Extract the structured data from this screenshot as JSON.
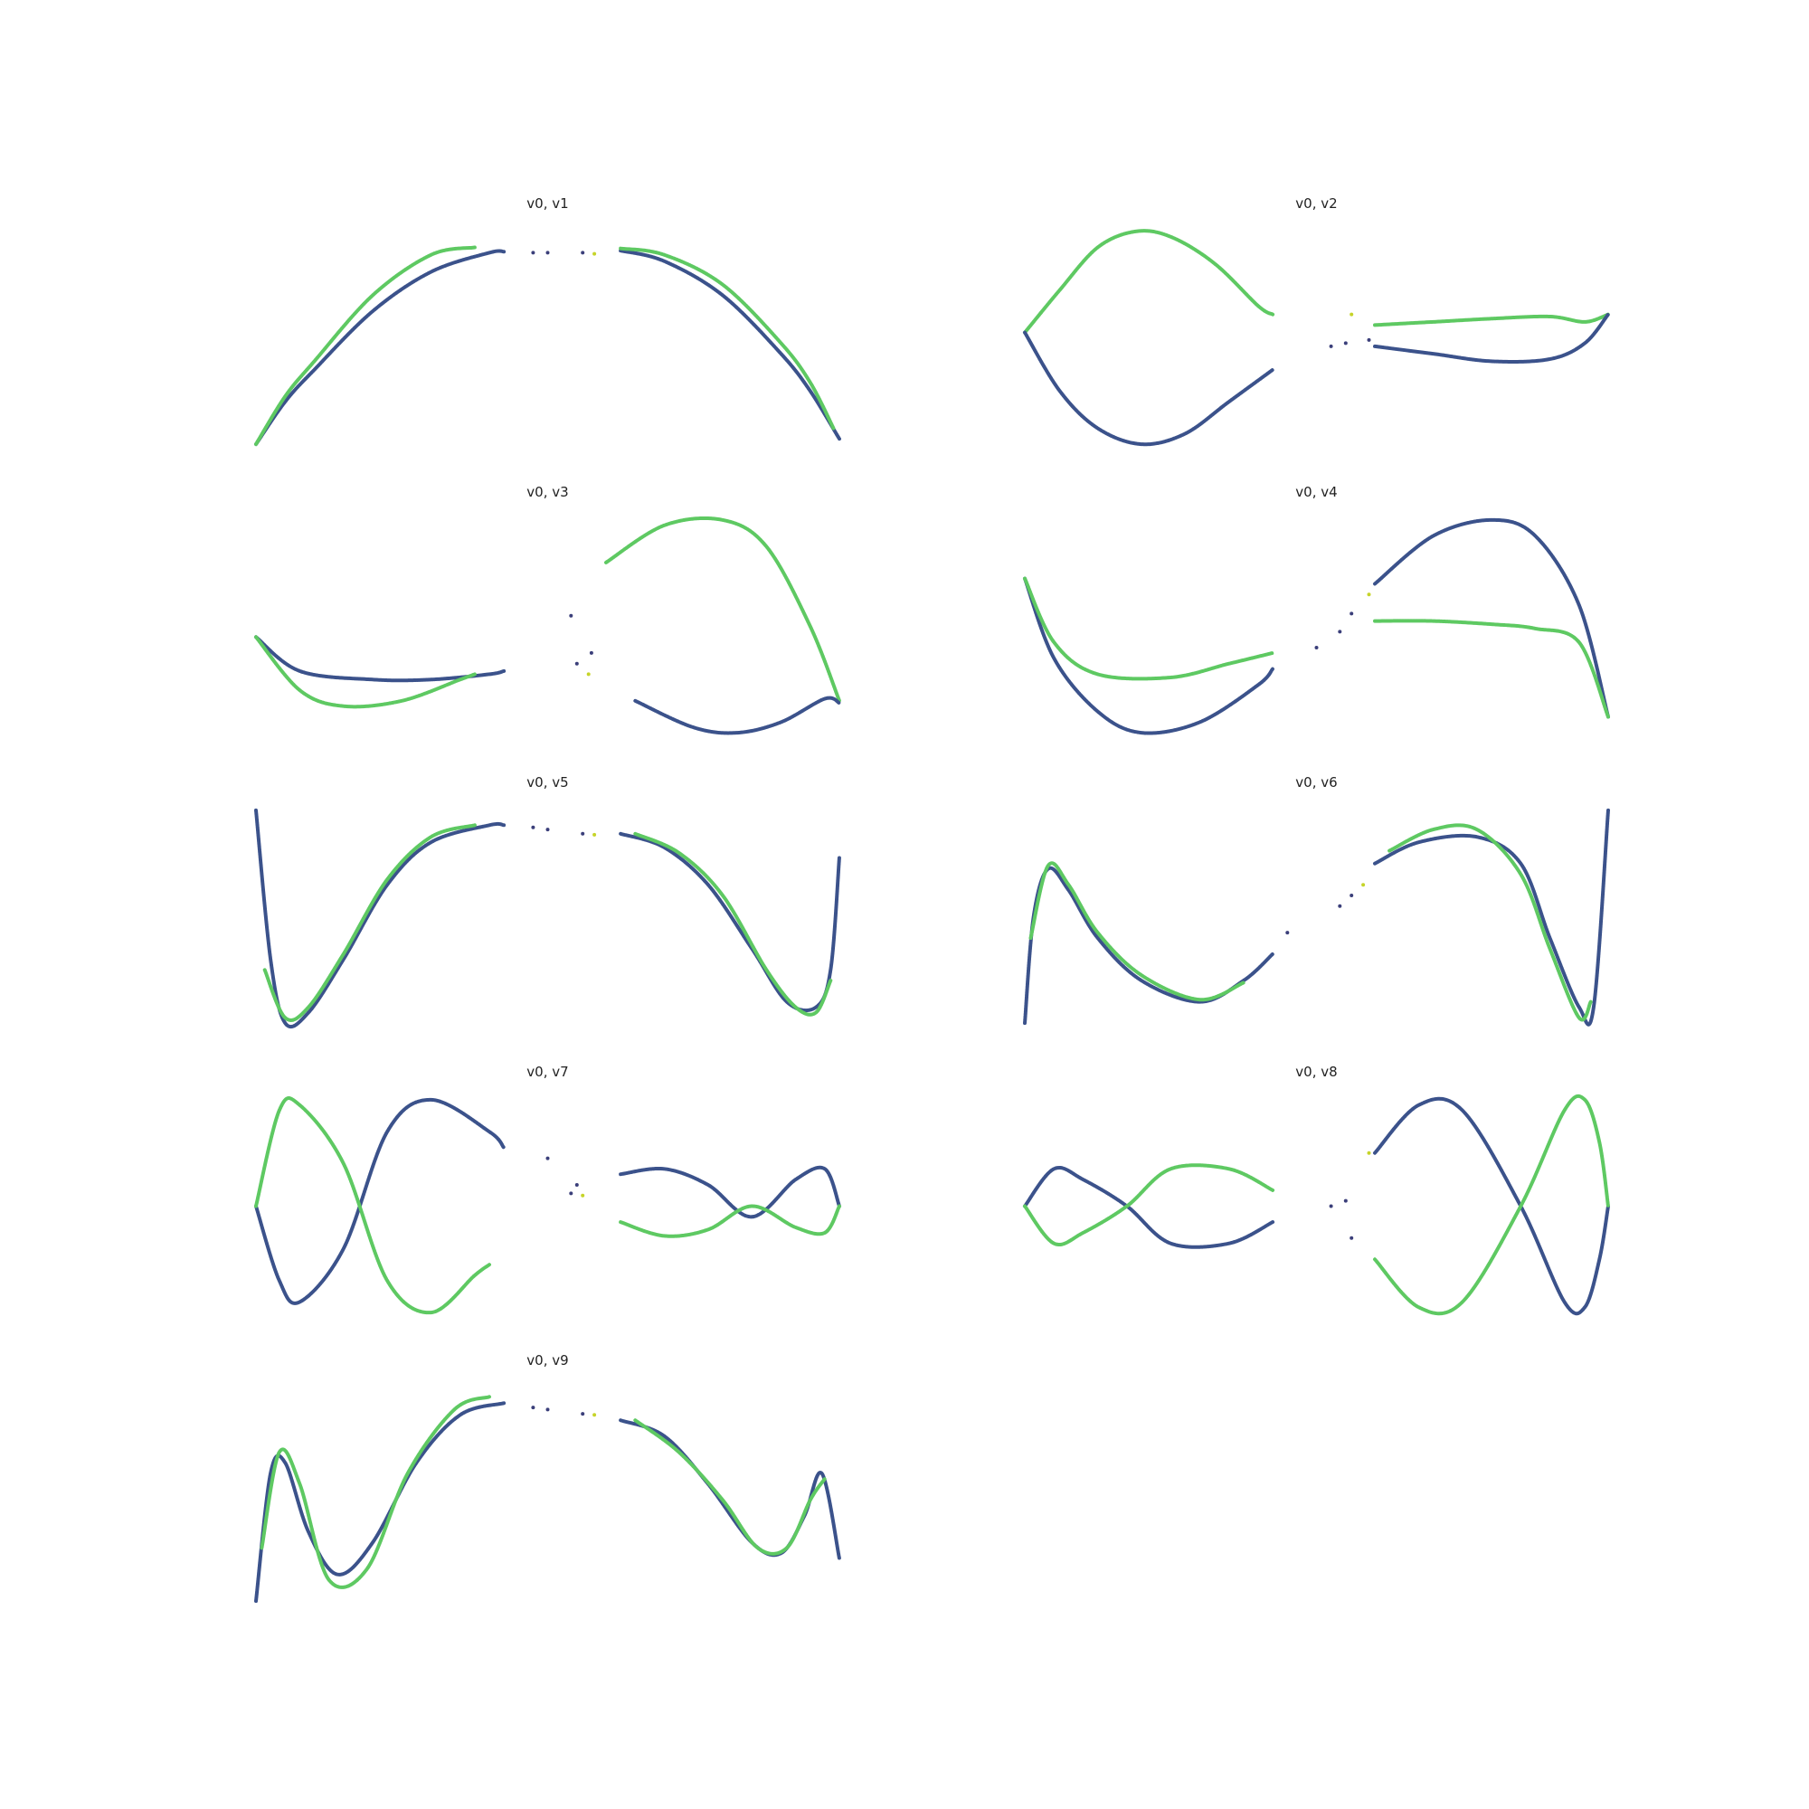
{
  "figure": {
    "background": "#ffffff",
    "colormap": [
      "#440154",
      "#3b528b",
      "#21918c",
      "#5ec962",
      "#fde725"
    ]
  },
  "chart_data": [
    {
      "type": "scatter",
      "title": "v0, v1",
      "x_var": "v0",
      "y_var": "v1",
      "xlim": [
        -1,
        1
      ],
      "ylim": [
        -1.05,
        1.05
      ],
      "axis": "off",
      "curves": [
        {
          "name": "lower",
          "color": "#3b528b",
          "x": [
            -1.0,
            -0.9,
            -0.8,
            -0.6,
            -0.4,
            -0.2,
            -0.15
          ],
          "y": [
            -1.0,
            -0.6,
            -0.3,
            0.25,
            0.62,
            0.8,
            0.81
          ]
        },
        {
          "name": "upper",
          "color": "#5ec962",
          "x": [
            -1.0,
            -0.9,
            -0.8,
            -0.6,
            -0.4,
            -0.25
          ],
          "y": [
            -1.0,
            -0.55,
            -0.22,
            0.4,
            0.78,
            0.85
          ]
        },
        {
          "name": "right-lower",
          "color": "#3b528b",
          "x": [
            0.25,
            0.4,
            0.6,
            0.8,
            0.9,
            1.0
          ],
          "y": [
            0.82,
            0.72,
            0.4,
            -0.15,
            -0.5,
            -0.95
          ]
        },
        {
          "name": "right-upper",
          "color": "#5ec962",
          "x": [
            0.25,
            0.4,
            0.6,
            0.8,
            0.9,
            0.98
          ],
          "y": [
            0.84,
            0.78,
            0.5,
            -0.05,
            -0.42,
            -0.85
          ]
        }
      ],
      "points": [
        {
          "x": -0.05,
          "y": 0.8
        },
        {
          "x": 0.0,
          "y": 0.8
        },
        {
          "x": 0.12,
          "y": 0.8
        },
        {
          "x": 0.16,
          "y": 0.79
        }
      ]
    },
    {
      "type": "scatter",
      "title": "v0, v2",
      "x_var": "v0",
      "y_var": "v2",
      "xlim": [
        -1,
        1
      ],
      "ylim": [
        -1.05,
        1.05
      ],
      "axis": "off",
      "curves": [
        {
          "name": "left-upper",
          "color": "#5ec962",
          "x": [
            -1.0,
            -0.88,
            -0.75,
            -0.62,
            -0.5,
            -0.35,
            -0.2,
            -0.15
          ],
          "y": [
            0.05,
            0.45,
            0.85,
            1.0,
            0.95,
            0.7,
            0.3,
            0.22
          ]
        },
        {
          "name": "left-lower",
          "color": "#3b528b",
          "x": [
            -1.0,
            -0.88,
            -0.75,
            -0.6,
            -0.45,
            -0.3,
            -0.15
          ],
          "y": [
            0.05,
            -0.5,
            -0.85,
            -1.0,
            -0.9,
            -0.6,
            -0.3
          ]
        },
        {
          "name": "right-upper",
          "color": "#5ec962",
          "x": [
            0.2,
            0.4,
            0.6,
            0.8,
            0.92,
            1.0
          ],
          "y": [
            0.12,
            0.15,
            0.18,
            0.2,
            0.15,
            0.22
          ]
        },
        {
          "name": "right-lower",
          "color": "#3b528b",
          "x": [
            0.2,
            0.4,
            0.6,
            0.8,
            0.92,
            1.0
          ],
          "y": [
            -0.08,
            -0.15,
            -0.22,
            -0.2,
            -0.05,
            0.22
          ]
        }
      ],
      "points": [
        {
          "x": 0.1,
          "y": -0.05
        },
        {
          "x": 0.18,
          "y": -0.02
        },
        {
          "x": 0.05,
          "y": -0.08
        },
        {
          "x": 0.12,
          "y": 0.22
        }
      ]
    },
    {
      "type": "scatter",
      "title": "v0, v3",
      "x_var": "v0",
      "y_var": "v3",
      "xlim": [
        -1,
        1
      ],
      "ylim": [
        -1.05,
        1.05
      ],
      "axis": "off",
      "curves": [
        {
          "name": "left-lower",
          "color": "#3b528b",
          "x": [
            -1.0,
            -0.85,
            -0.6,
            -0.4,
            -0.2,
            -0.15
          ],
          "y": [
            -0.1,
            -0.42,
            -0.5,
            -0.5,
            -0.45,
            -0.42
          ]
        },
        {
          "name": "left-upper",
          "color": "#5ec962",
          "x": [
            -1.0,
            -0.85,
            -0.7,
            -0.5,
            -0.3,
            -0.25
          ],
          "y": [
            -0.1,
            -0.6,
            -0.75,
            -0.7,
            -0.5,
            -0.45
          ]
        },
        {
          "name": "right-upper",
          "color": "#5ec962",
          "x": [
            0.2,
            0.4,
            0.6,
            0.75,
            0.9,
            1.0
          ],
          "y": [
            0.6,
            0.95,
            1.0,
            0.75,
            0.0,
            -0.7
          ]
        },
        {
          "name": "right-lower",
          "color": "#3b528b",
          "x": [
            0.3,
            0.5,
            0.65,
            0.8,
            0.95,
            1.0
          ],
          "y": [
            -0.7,
            -0.95,
            -1.0,
            -0.9,
            -0.68,
            -0.72
          ]
        }
      ],
      "points": [
        {
          "x": 0.1,
          "y": -0.35
        },
        {
          "x": 0.15,
          "y": -0.25
        },
        {
          "x": 0.08,
          "y": 0.1
        },
        {
          "x": 0.14,
          "y": -0.45
        }
      ]
    },
    {
      "type": "scatter",
      "title": "v0, v4",
      "x_var": "v0",
      "y_var": "v4",
      "xlim": [
        -1,
        1
      ],
      "ylim": [
        -1.05,
        1.05
      ],
      "axis": "off",
      "curves": [
        {
          "name": "left-lower",
          "color": "#3b528b",
          "x": [
            -1.0,
            -0.9,
            -0.75,
            -0.6,
            -0.4,
            -0.2,
            -0.15
          ],
          "y": [
            0.45,
            -0.3,
            -0.8,
            -1.0,
            -0.9,
            -0.55,
            -0.4
          ]
        },
        {
          "name": "left-upper",
          "color": "#5ec962",
          "x": [
            -1.0,
            -0.9,
            -0.75,
            -0.5,
            -0.3,
            -0.15
          ],
          "y": [
            0.45,
            -0.15,
            -0.45,
            -0.48,
            -0.35,
            -0.25
          ]
        },
        {
          "name": "right-upper",
          "color": "#3b528b",
          "x": [
            0.2,
            0.4,
            0.6,
            0.75,
            0.9,
            1.0
          ],
          "y": [
            0.4,
            0.85,
            1.0,
            0.85,
            0.2,
            -0.85
          ]
        },
        {
          "name": "right-lower",
          "color": "#5ec962",
          "x": [
            0.2,
            0.4,
            0.6,
            0.75,
            0.9,
            1.0
          ],
          "y": [
            0.05,
            0.05,
            0.02,
            -0.02,
            -0.15,
            -0.85
          ]
        }
      ],
      "points": [
        {
          "x": 0.08,
          "y": -0.05
        },
        {
          "x": 0.12,
          "y": 0.12
        },
        {
          "x": 0.0,
          "y": -0.2
        },
        {
          "x": 0.18,
          "y": 0.3
        }
      ]
    },
    {
      "type": "scatter",
      "title": "v0, v5",
      "x_var": "v0",
      "y_var": "v5",
      "xlim": [
        -1,
        1
      ],
      "ylim": [
        -1.05,
        1.05
      ],
      "axis": "off",
      "curves": [
        {
          "name": "left",
          "color": "#3b528b",
          "x": [
            -1.0,
            -0.95,
            -0.9,
            -0.82,
            -0.7,
            -0.55,
            -0.4,
            -0.2,
            -0.15
          ],
          "y": [
            1.0,
            -0.4,
            -1.0,
            -0.9,
            -0.4,
            0.3,
            0.7,
            0.86,
            0.86
          ]
        },
        {
          "name": "left-alt",
          "color": "#5ec962",
          "x": [
            -0.97,
            -0.9,
            -0.82,
            -0.7,
            -0.55,
            -0.4,
            -0.25
          ],
          "y": [
            -0.5,
            -0.95,
            -0.85,
            -0.35,
            0.35,
            0.75,
            0.86
          ]
        },
        {
          "name": "right",
          "color": "#3b528b",
          "x": [
            0.25,
            0.4,
            0.55,
            0.7,
            0.82,
            0.92,
            0.97,
            1.0
          ],
          "y": [
            0.78,
            0.65,
            0.3,
            -0.3,
            -0.8,
            -0.85,
            -0.5,
            0.56
          ]
        },
        {
          "name": "right-alt",
          "color": "#5ec962",
          "x": [
            0.3,
            0.45,
            0.6,
            0.75,
            0.85,
            0.92,
            0.97
          ],
          "y": [
            0.78,
            0.6,
            0.2,
            -0.5,
            -0.85,
            -0.9,
            -0.6
          ]
        }
      ],
      "points": [
        {
          "x": -0.05,
          "y": 0.84
        },
        {
          "x": 0.0,
          "y": 0.82
        },
        {
          "x": 0.12,
          "y": 0.78
        },
        {
          "x": 0.16,
          "y": 0.77
        }
      ]
    },
    {
      "type": "scatter",
      "title": "v0, v6",
      "x_var": "v0",
      "y_var": "v6",
      "xlim": [
        -1,
        1
      ],
      "ylim": [
        -1.05,
        1.05
      ],
      "axis": "off",
      "curves": [
        {
          "name": "left",
          "color": "#3b528b",
          "x": [
            -1.0,
            -0.97,
            -0.92,
            -0.85,
            -0.75,
            -0.6,
            -0.4,
            -0.25,
            -0.15
          ],
          "y": [
            -1.0,
            0.0,
            0.45,
            0.25,
            -0.2,
            -0.6,
            -0.8,
            -0.6,
            -0.35
          ]
        },
        {
          "name": "left-alt",
          "color": "#5ec962",
          "x": [
            -0.98,
            -0.92,
            -0.85,
            -0.75,
            -0.6,
            -0.4,
            -0.25
          ],
          "y": [
            -0.2,
            0.48,
            0.3,
            -0.15,
            -0.55,
            -0.78,
            -0.62
          ]
        },
        {
          "name": "right",
          "color": "#3b528b",
          "x": [
            0.2,
            0.35,
            0.55,
            0.7,
            0.8,
            0.9,
            0.95,
            1.0
          ],
          "y": [
            0.5,
            0.7,
            0.75,
            0.5,
            -0.2,
            -0.85,
            -0.85,
            1.0
          ]
        },
        {
          "name": "right-alt",
          "color": "#5ec962",
          "x": [
            0.25,
            0.4,
            0.55,
            0.7,
            0.8,
            0.9,
            0.94
          ],
          "y": [
            0.62,
            0.82,
            0.82,
            0.4,
            -0.3,
            -0.95,
            -0.8
          ]
        }
      ],
      "points": [
        {
          "x": -0.1,
          "y": -0.15
        },
        {
          "x": 0.08,
          "y": 0.1
        },
        {
          "x": 0.12,
          "y": 0.2
        },
        {
          "x": 0.16,
          "y": 0.3
        }
      ]
    },
    {
      "type": "scatter",
      "title": "v0, v7",
      "x_var": "v0",
      "y_var": "v7",
      "xlim": [
        -1,
        1
      ],
      "ylim": [
        -1.05,
        1.05
      ],
      "axis": "off",
      "curves": [
        {
          "name": "left-a",
          "color": "#3b528b",
          "x": [
            -1.0,
            -0.92,
            -0.85,
            -0.7,
            -0.55,
            -0.4,
            -0.2,
            -0.15
          ],
          "y": [
            0.0,
            -0.7,
            -0.9,
            -0.4,
            0.7,
            1.0,
            0.7,
            0.55
          ]
        },
        {
          "name": "left-b",
          "color": "#5ec962",
          "x": [
            -1.0,
            -0.92,
            -0.85,
            -0.7,
            -0.55,
            -0.4,
            -0.25,
            -0.2
          ],
          "y": [
            0.0,
            0.9,
            0.95,
            0.4,
            -0.7,
            -1.0,
            -0.65,
            -0.55
          ]
        },
        {
          "name": "right-a",
          "color": "#3b528b",
          "x": [
            0.25,
            0.4,
            0.55,
            0.7,
            0.85,
            0.95,
            1.0
          ],
          "y": [
            0.3,
            0.35,
            0.2,
            -0.1,
            0.25,
            0.35,
            0.0
          ]
        },
        {
          "name": "right-b",
          "color": "#5ec962",
          "x": [
            0.25,
            0.4,
            0.55,
            0.7,
            0.85,
            0.95,
            1.0
          ],
          "y": [
            -0.15,
            -0.28,
            -0.22,
            0.0,
            -0.2,
            -0.25,
            0.0
          ]
        }
      ],
      "points": [
        {
          "x": 0.1,
          "y": 0.2
        },
        {
          "x": 0.0,
          "y": 0.45
        },
        {
          "x": 0.08,
          "y": 0.12
        },
        {
          "x": 0.12,
          "y": 0.1
        }
      ]
    },
    {
      "type": "scatter",
      "title": "v0, v8",
      "x_var": "v0",
      "y_var": "v8",
      "xlim": [
        -1,
        1
      ],
      "ylim": [
        -1.05,
        1.05
      ],
      "axis": "off",
      "curves": [
        {
          "name": "left-a",
          "color": "#3b528b",
          "x": [
            -1.0,
            -0.9,
            -0.8,
            -0.65,
            -0.5,
            -0.3,
            -0.15
          ],
          "y": [
            0.0,
            0.35,
            0.25,
            0.0,
            -0.35,
            -0.35,
            -0.15
          ]
        },
        {
          "name": "left-b",
          "color": "#5ec962",
          "x": [
            -1.0,
            -0.9,
            -0.8,
            -0.65,
            -0.5,
            -0.3,
            -0.15
          ],
          "y": [
            0.0,
            -0.35,
            -0.25,
            0.0,
            0.35,
            0.35,
            0.15
          ]
        },
        {
          "name": "right-a",
          "color": "#3b528b",
          "x": [
            0.2,
            0.35,
            0.5,
            0.7,
            0.85,
            0.92,
            0.97,
            1.0
          ],
          "y": [
            0.5,
            0.95,
            0.9,
            0.0,
            -0.9,
            -0.95,
            -0.5,
            0.0
          ]
        },
        {
          "name": "right-b",
          "color": "#5ec962",
          "x": [
            0.2,
            0.35,
            0.5,
            0.7,
            0.85,
            0.92,
            0.97,
            1.0
          ],
          "y": [
            -0.5,
            -0.95,
            -0.9,
            0.0,
            0.9,
            1.0,
            0.6,
            0.0
          ]
        }
      ],
      "points": [
        {
          "x": 0.1,
          "y": 0.05
        },
        {
          "x": 0.12,
          "y": -0.3
        },
        {
          "x": 0.05,
          "y": 0.0
        },
        {
          "x": 0.18,
          "y": 0.5
        }
      ]
    },
    {
      "type": "scatter",
      "title": "v0, v9",
      "x_var": "v0",
      "y_var": "v9",
      "xlim": [
        -1,
        1
      ],
      "ylim": [
        -1.05,
        1.05
      ],
      "axis": "off",
      "curves": [
        {
          "name": "left",
          "color": "#3b528b",
          "x": [
            -1.0,
            -0.95,
            -0.9,
            -0.82,
            -0.72,
            -0.6,
            -0.45,
            -0.3,
            -0.15
          ],
          "y": [
            -1.0,
            0.2,
            0.3,
            -0.35,
            -0.75,
            -0.45,
            0.3,
            0.75,
            0.86
          ]
        },
        {
          "name": "left-alt",
          "color": "#5ec962",
          "x": [
            -0.98,
            -0.92,
            -0.85,
            -0.75,
            -0.62,
            -0.48,
            -0.32,
            -0.2
          ],
          "y": [
            -0.5,
            0.4,
            0.1,
            -0.8,
            -0.7,
            0.2,
            0.8,
            0.92
          ]
        },
        {
          "name": "right",
          "color": "#3b528b",
          "x": [
            0.25,
            0.4,
            0.55,
            0.7,
            0.8,
            0.88,
            0.94,
            1.0
          ],
          "y": [
            0.7,
            0.55,
            0.1,
            -0.45,
            -0.55,
            -0.2,
            0.2,
            -0.6
          ]
        },
        {
          "name": "right-alt",
          "color": "#5ec962",
          "x": [
            0.3,
            0.45,
            0.6,
            0.72,
            0.82,
            0.9,
            0.95
          ],
          "y": [
            0.7,
            0.4,
            -0.05,
            -0.5,
            -0.5,
            -0.05,
            0.15
          ]
        }
      ],
      "points": [
        {
          "x": -0.05,
          "y": 0.82
        },
        {
          "x": 0.0,
          "y": 0.8
        },
        {
          "x": 0.12,
          "y": 0.76
        },
        {
          "x": 0.16,
          "y": 0.75
        }
      ]
    }
  ]
}
